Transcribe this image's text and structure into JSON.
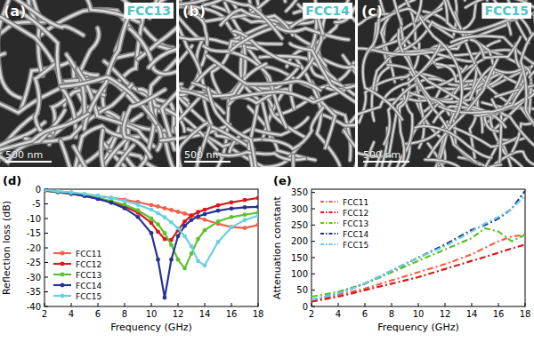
{
  "images": [
    {
      "letter": "(a)",
      "label": "FCC13",
      "scale_bar": "500 nm"
    },
    {
      "letter": "(b)",
      "label": "FCC14",
      "scale_bar": "500 nm"
    },
    {
      "letter": "(c)",
      "label": "FCC15",
      "scale_bar": "500 nm"
    }
  ],
  "chart_data": [
    {
      "type": "line",
      "letter": "(d)",
      "x_label": "Frequency (GHz)",
      "y_label": "Reflection loss (dB)",
      "x": [
        2,
        3,
        4,
        5,
        6,
        7,
        8,
        9,
        10,
        10.5,
        11,
        11.5,
        12,
        12.5,
        13,
        13.5,
        14,
        15,
        16,
        17,
        18
      ],
      "xlim": [
        2,
        18
      ],
      "xticks": [
        2,
        4,
        6,
        8,
        10,
        12,
        14,
        16,
        18
      ],
      "ylim": [
        -40,
        0
      ],
      "yticks": [
        -40,
        -35,
        -30,
        -25,
        -20,
        -15,
        -10,
        -5,
        0
      ],
      "legend": "lower left",
      "marker": "circle",
      "line_style": "solid",
      "series": [
        {
          "name": "FCC11",
          "color": "#f0614a",
          "values": [
            -0.3,
            -0.8,
            -1.2,
            -1.8,
            -2.3,
            -2.9,
            -3.6,
            -4.4,
            -5.4,
            -5.9,
            -6.5,
            -7.1,
            -7.7,
            -8.3,
            -9,
            -9.7,
            -10.4,
            -11.8,
            -12.9,
            -13.2,
            -12.2
          ]
        },
        {
          "name": "FCC12",
          "color": "#d7191c",
          "values": [
            -0.5,
            -1,
            -1.6,
            -2.3,
            -3.2,
            -4.3,
            -5.8,
            -8,
            -11.5,
            -14.5,
            -17,
            -17.3,
            -14,
            -11,
            -9,
            -7.8,
            -7,
            -5.5,
            -4.5,
            -3.7,
            -3
          ]
        },
        {
          "name": "FCC13",
          "color": "#5cc22b",
          "values": [
            -0.5,
            -1,
            -1.5,
            -2.2,
            -3,
            -4,
            -5.3,
            -7.2,
            -10,
            -12,
            -15,
            -19,
            -24,
            -27,
            -22,
            -17,
            -14,
            -11,
            -9.5,
            -8.7,
            -8
          ]
        },
        {
          "name": "FCC14",
          "color": "#253494",
          "values": [
            -0.4,
            -0.9,
            -1.5,
            -2.3,
            -3.3,
            -4.6,
            -6.5,
            -9.5,
            -15,
            -24,
            -37,
            -24,
            -16,
            -12.5,
            -10.5,
            -9.3,
            -8.5,
            -7.3,
            -6.6,
            -6.2,
            -6
          ]
        },
        {
          "name": "FCC15",
          "color": "#6ad0e0",
          "values": [
            -0.3,
            -0.7,
            -1.1,
            -1.6,
            -2.2,
            -3,
            -4,
            -5.3,
            -7,
            -8.2,
            -9.6,
            -11.3,
            -13.3,
            -16,
            -19.5,
            -24.5,
            -26,
            -18,
            -13,
            -10.5,
            -9
          ]
        }
      ]
    },
    {
      "type": "line",
      "letter": "(e)",
      "x_label": "Frequency (GHz)",
      "y_label": "Attenuation constant",
      "x": [
        2,
        4,
        6,
        8,
        10,
        12,
        14,
        15,
        16,
        17,
        18
      ],
      "xlim": [
        2,
        18
      ],
      "xticks": [
        2,
        4,
        6,
        8,
        10,
        12,
        14,
        16,
        18
      ],
      "ylim": [
        0,
        360
      ],
      "yticks": [
        0,
        50,
        100,
        150,
        200,
        250,
        300,
        350
      ],
      "legend": "upper left",
      "line_style": "dashdot",
      "series": [
        {
          "name": "FCC11",
          "color": "#f0614a",
          "values": [
            15,
            35,
            55,
            80,
            105,
            130,
            160,
            180,
            200,
            215,
            220
          ]
        },
        {
          "name": "FCC12",
          "color": "#d7191c",
          "values": [
            15,
            30,
            50,
            70,
            90,
            115,
            140,
            152,
            165,
            178,
            190
          ]
        },
        {
          "name": "FCC13",
          "color": "#5cc22b",
          "values": [
            30,
            45,
            70,
            105,
            140,
            175,
            210,
            240,
            230,
            200,
            220
          ]
        },
        {
          "name": "FCC14",
          "color": "#253494",
          "values": [
            20,
            40,
            70,
            110,
            150,
            190,
            235,
            250,
            270,
            300,
            355
          ]
        },
        {
          "name": "FCC15",
          "color": "#6ad0e0",
          "values": [
            20,
            40,
            70,
            110,
            150,
            185,
            230,
            255,
            275,
            300,
            340
          ]
        }
      ]
    }
  ]
}
